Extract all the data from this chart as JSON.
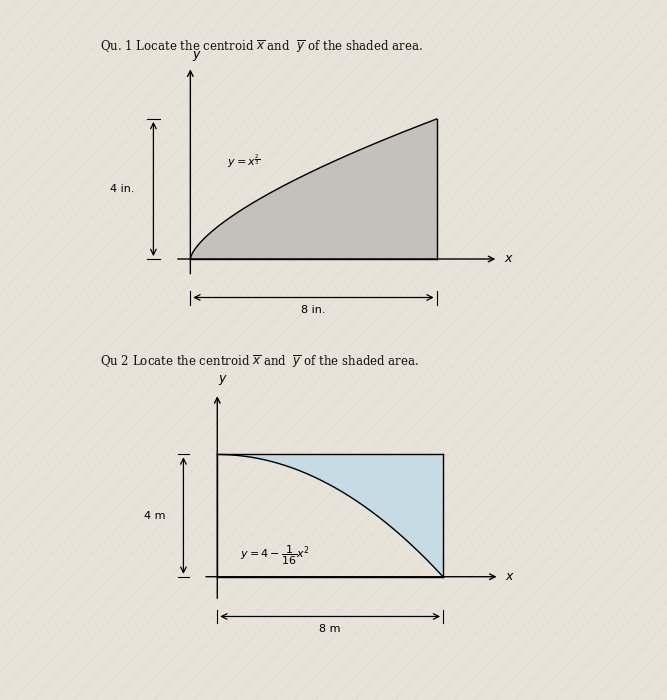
{
  "bg_color": "#e8e3d8",
  "shade_color1": "#c0bdb8",
  "shade_color2": "#b8d8e8",
  "text_color": "#111111",
  "title1": "Qu. 1 Locate the centroid $\\overline{x}$ and  $\\overline{y}$ of the shaded area.",
  "title2": "Qu 2 Locate the centroid $\\overline{x}$ and  $\\overline{y}$ of the shaded area.",
  "eq1": "$y = x^{\\frac{2}{3}}$",
  "eq2": "$y = 4 - \\dfrac{1}{16}x^2$",
  "label_4in": "4 in.",
  "label_8in": "8 in.",
  "label_4m": "4 m",
  "label_8m": "8 m"
}
